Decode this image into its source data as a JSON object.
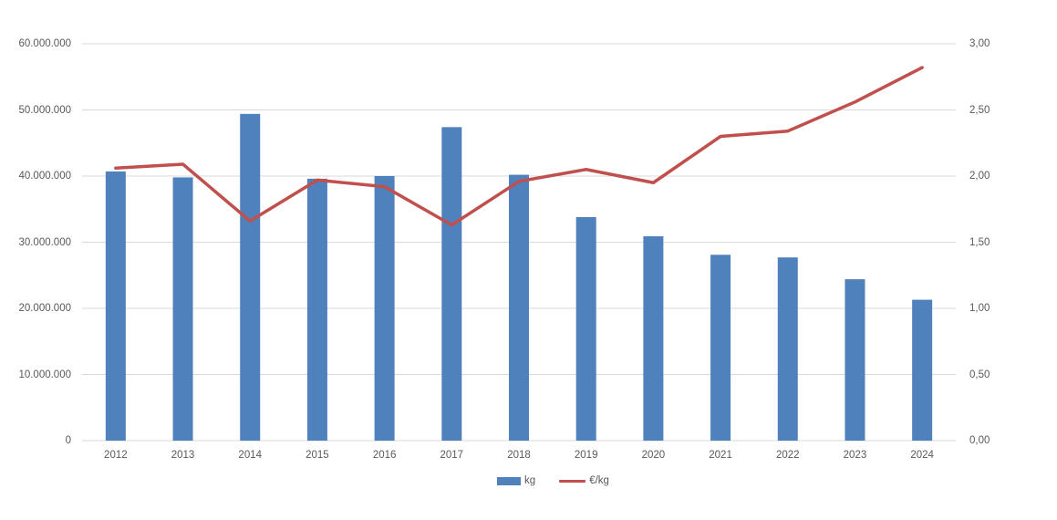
{
  "chart_data": {
    "type": "bar",
    "subtype": "combo-bar-line",
    "title": "",
    "categories": [
      "2012",
      "2013",
      "2014",
      "2015",
      "2016",
      "2017",
      "2018",
      "2019",
      "2020",
      "2021",
      "2022",
      "2023",
      "2024"
    ],
    "series": [
      {
        "name": "kg",
        "render": "bar",
        "axis": "left",
        "color": "#4F81BD",
        "values": [
          40700000,
          39800000,
          49400000,
          39600000,
          40000000,
          47400000,
          40200000,
          33800000,
          30900000,
          28100000,
          27700000,
          24400000,
          21300000
        ]
      },
      {
        "name": "€/kg",
        "render": "line",
        "axis": "right",
        "color": "#C0504D",
        "values": [
          2.06,
          2.09,
          1.66,
          1.97,
          1.92,
          1.63,
          1.96,
          2.05,
          1.95,
          2.3,
          2.34,
          2.56,
          2.82
        ]
      }
    ],
    "left_axis": {
      "min": 0,
      "max": 60000000,
      "tick_labels": [
        "0",
        "10.000.000",
        "20.000.000",
        "30.000.000",
        "40.000.000",
        "50.000.000",
        "60.000.000"
      ]
    },
    "right_axis": {
      "min": 0,
      "max": 3,
      "tick_labels": [
        "0,00",
        "0,50",
        "1,00",
        "1,50",
        "2,00",
        "2,50",
        "3,00"
      ]
    },
    "grid": true,
    "legend_position": "bottom",
    "gridline_color": "#D9D9D9",
    "text_color": "#595959",
    "background_color": "#FFFFFF"
  }
}
